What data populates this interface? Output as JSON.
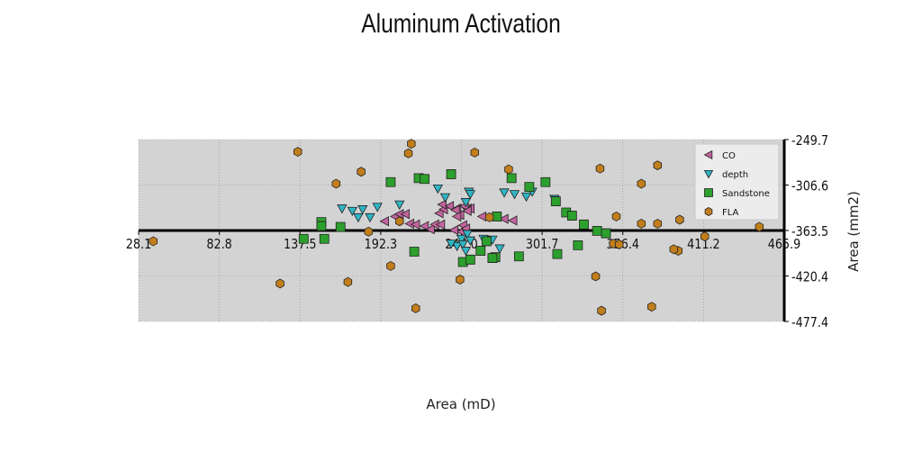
{
  "chart_data": {
    "type": "scatter",
    "title": "Aluminum Activation",
    "xlabel": "Area (mD)",
    "ylabel": "Area (mm2)",
    "xlim": [
      28.1,
      465.9
    ],
    "ylim": [
      -477.4,
      -249.7
    ],
    "x_ticks": [
      "28.1",
      "82.8",
      "137.5",
      "192.3",
      "247.0",
      "301.7",
      "356.4",
      "411.2",
      "465.9"
    ],
    "y_ticks": [
      "-249.7",
      "-306.6",
      "-363.5",
      "-420.4",
      "-477.4"
    ],
    "grid": true,
    "legend_position": "top-right",
    "colors": {
      "CO": "#c2649e",
      "depth": "#2fb5c4",
      "Sandstone": "#2ca02c",
      "FLA": "#c27e1b",
      "plot_bg": "#d3d3d3"
    },
    "series": [
      {
        "name": "CO",
        "marker": "triangle-left",
        "points": [
          [
            195,
            -352
          ],
          [
            202,
            -346
          ],
          [
            205,
            -343
          ],
          [
            209,
            -343
          ],
          [
            212,
            -355
          ],
          [
            216,
            -356
          ],
          [
            222,
            -358
          ],
          [
            226,
            -362
          ],
          [
            229,
            -356
          ],
          [
            233,
            -356
          ],
          [
            232,
            -342
          ],
          [
            235,
            -337
          ],
          [
            234,
            -331
          ],
          [
            239,
            -333
          ],
          [
            244,
            -336
          ],
          [
            243,
            -338
          ],
          [
            251,
            -336
          ],
          [
            246,
            -344
          ],
          [
            244,
            -346
          ],
          [
            247,
            -365
          ],
          [
            248,
            -357
          ],
          [
            250,
            -361
          ],
          [
            253,
            -336
          ],
          [
            261,
            -346
          ],
          [
            271,
            -346
          ],
          [
            276,
            -349
          ],
          [
            282,
            -351
          ],
          [
            249,
            -333
          ],
          [
            251,
            -339
          ],
          [
            242,
            -363
          ]
        ]
      },
      {
        "name": "depth",
        "marker": "triangle-down",
        "points": [
          [
            166,
            -336
          ],
          [
            173,
            -339
          ],
          [
            177,
            -347
          ],
          [
            185,
            -347
          ],
          [
            180,
            -337
          ],
          [
            190,
            -334
          ],
          [
            205,
            -331
          ],
          [
            231,
            -311
          ],
          [
            236,
            -322
          ],
          [
            247,
            -374
          ],
          [
            244,
            -383
          ],
          [
            248,
            -381
          ],
          [
            250,
            -389
          ],
          [
            251,
            -368
          ],
          [
            253,
            -376
          ],
          [
            250,
            -328
          ],
          [
            252,
            -315
          ],
          [
            253,
            -318
          ],
          [
            262,
            -374
          ],
          [
            268,
            -375
          ],
          [
            273,
            -386
          ],
          [
            276,
            -316
          ],
          [
            283,
            -318
          ],
          [
            291,
            -321
          ],
          [
            295,
            -315
          ],
          [
            310,
            -324
          ],
          [
            240,
            -380
          ]
        ]
      },
      {
        "name": "Sandstone",
        "marker": "square",
        "points": [
          [
            140,
            -374
          ],
          [
            152,
            -353
          ],
          [
            152,
            -358
          ],
          [
            154,
            -374
          ],
          [
            165,
            -359
          ],
          [
            199,
            -303
          ],
          [
            215,
            -390
          ],
          [
            218,
            -298
          ],
          [
            222,
            -299
          ],
          [
            240,
            -293
          ],
          [
            248,
            -403
          ],
          [
            253,
            -400
          ],
          [
            260,
            -389
          ],
          [
            264,
            -377
          ],
          [
            270,
            -397
          ],
          [
            271,
            -346
          ],
          [
            281,
            -298
          ],
          [
            286,
            -396
          ],
          [
            293,
            -309
          ],
          [
            304,
            -303
          ],
          [
            312,
            -393
          ],
          [
            311,
            -327
          ],
          [
            318,
            -341
          ],
          [
            322,
            -345
          ],
          [
            326,
            -382
          ],
          [
            330,
            -356
          ],
          [
            339,
            -364
          ],
          [
            345,
            -367
          ],
          [
            268,
            -398
          ]
        ]
      },
      {
        "name": "FLA",
        "marker": "hexagon",
        "points": [
          [
            38,
            -377
          ],
          [
            124,
            -430
          ],
          [
            136,
            -265
          ],
          [
            162,
            -305
          ],
          [
            170,
            -428
          ],
          [
            179,
            -290
          ],
          [
            184,
            -365
          ],
          [
            199,
            -408
          ],
          [
            205,
            -352
          ],
          [
            211,
            -267
          ],
          [
            213,
            -255
          ],
          [
            216,
            -461
          ],
          [
            246,
            -425
          ],
          [
            256,
            -266
          ],
          [
            266,
            -347
          ],
          [
            279,
            -287
          ],
          [
            341,
            -286
          ],
          [
            338,
            -421
          ],
          [
            342,
            -464
          ],
          [
            350,
            -380
          ],
          [
            352,
            -346
          ],
          [
            354,
            -381
          ],
          [
            369,
            -355
          ],
          [
            369,
            -305
          ],
          [
            376,
            -459
          ],
          [
            380,
            -282
          ],
          [
            380,
            -355
          ],
          [
            394,
            -389
          ],
          [
            395,
            -350
          ],
          [
            412,
            -371
          ],
          [
            449,
            -359
          ],
          [
            391,
            -387
          ]
        ]
      }
    ]
  }
}
